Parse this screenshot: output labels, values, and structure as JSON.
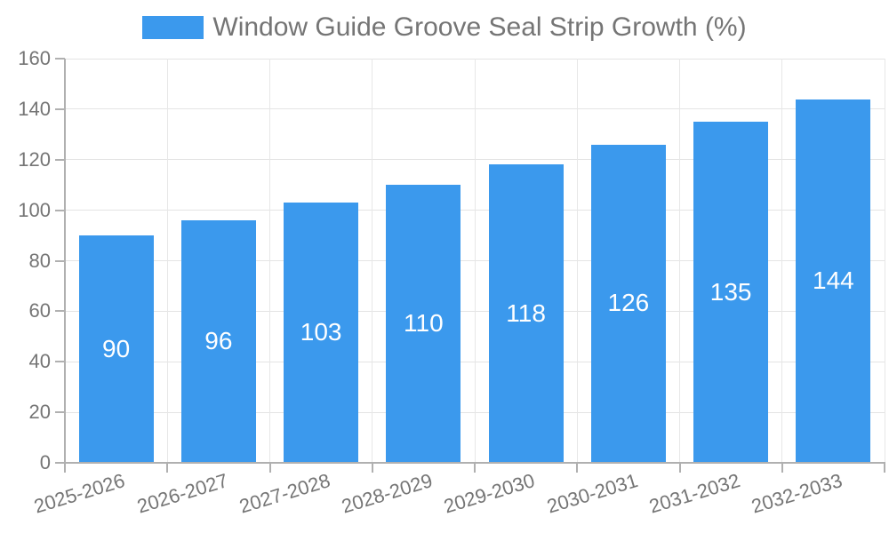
{
  "legend": {
    "label": "Window Guide Groove Seal Strip Growth (%)"
  },
  "chart_data": {
    "type": "bar",
    "title": "Window Guide Groove Seal Strip Growth (%)",
    "categories": [
      "2025-2026",
      "2026-2027",
      "2027-2028",
      "2028-2029",
      "2029-2030",
      "2030-2031",
      "2031-2032",
      "2032-2033"
    ],
    "values": [
      90,
      96,
      103,
      110,
      118,
      126,
      135,
      144
    ],
    "xlabel": "",
    "ylabel": "",
    "ylim": [
      0,
      160
    ],
    "ytick_step": 20,
    "yticks": [
      0,
      20,
      40,
      60,
      80,
      100,
      120,
      140,
      160
    ],
    "grid": true,
    "legend_position": "top-center",
    "colors": {
      "bar": "#3b99ed",
      "bar_label_text": "#ffffff",
      "axis_text": "#757575",
      "axis_line": "#b0b0b0",
      "gridline": "#e4e4e4",
      "background": "#ffffff"
    }
  }
}
